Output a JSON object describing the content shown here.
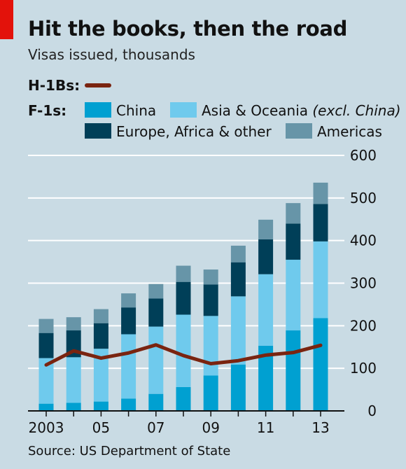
{
  "title": "Hit the books, then the road",
  "subtitle": "Visas issued, thousands",
  "source": "Source: US Department of State",
  "legend": {
    "h1b_label": "H-1Bs:",
    "f1_label": "F-1s:",
    "china": "China",
    "asia": "Asia & Oceania",
    "asia_excl": "(excl. China)",
    "europe": "Europe, Africa & other",
    "americas": "Americas"
  },
  "colors": {
    "china": "#00a0d1",
    "asia": "#6fcaed",
    "europe": "#003f58",
    "americas": "#6795a8",
    "h1b": "#7a2410",
    "grid": "#ffffff",
    "accent": "#e3120b"
  },
  "chart_data": {
    "type": "bar",
    "stacked": true,
    "categories": [
      "2003",
      "2004",
      "2005",
      "2006",
      "2007",
      "2008",
      "2009",
      "2010",
      "2011",
      "2012",
      "2013"
    ],
    "x_tick_labels": [
      "2003",
      "05",
      "07",
      "09",
      "11",
      "13"
    ],
    "series": [
      {
        "name": "China",
        "values": [
          17,
          19,
          22,
          29,
          40,
          56,
          83,
          109,
          153,
          189,
          218
        ]
      },
      {
        "name": "Asia & Oceania (excl. China)",
        "values": [
          107,
          107,
          124,
          151,
          158,
          170,
          140,
          160,
          168,
          166,
          180
        ]
      },
      {
        "name": "Europe, Africa & other",
        "values": [
          59,
          63,
          60,
          63,
          66,
          77,
          74,
          80,
          82,
          85,
          88
        ]
      },
      {
        "name": "Americas",
        "values": [
          33,
          31,
          33,
          33,
          34,
          38,
          35,
          39,
          46,
          48,
          50
        ]
      }
    ],
    "line_series": {
      "name": "H-1Bs",
      "values": [
        108,
        141,
        124,
        136,
        155,
        130,
        111,
        118,
        131,
        137,
        154
      ]
    },
    "ylim": [
      0,
      600
    ],
    "yticks": [
      0,
      100,
      200,
      300,
      400,
      500,
      600
    ],
    "y_axis_side": "right",
    "grid": true
  }
}
